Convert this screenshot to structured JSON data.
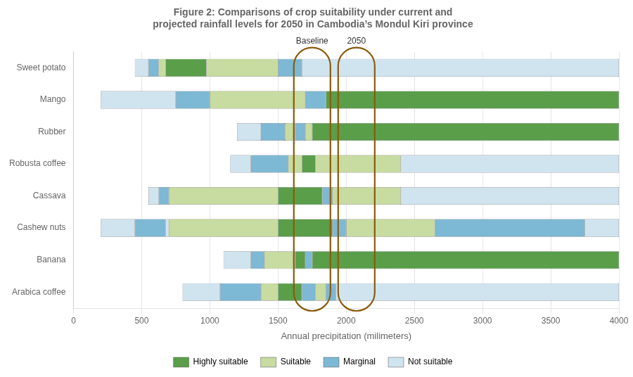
{
  "chart_data": {
    "type": "bar",
    "orientation": "horizontal",
    "title": "Figure 2: Comparisons of crop suitability under current and\nprojected rainfall levels for 2050 in Cambodia’s Mondul Kiri province",
    "xlabel": "Annual precipitation (milimeters)",
    "xlim": [
      0,
      4000
    ],
    "xticks": [
      0,
      500,
      1000,
      1500,
      2000,
      2500,
      3000,
      3500,
      4000
    ],
    "grid": "x",
    "legend": "bottom",
    "categories": [
      "Sweet potato",
      "Mango",
      "Rubber",
      "Robusta coffee",
      "Cassava",
      "Cashew nuts",
      "Banana",
      "Arabica coffee"
    ],
    "series": [
      {
        "name": "Highly suitable",
        "color": "#5a9e4a"
      },
      {
        "name": "Suitable",
        "color": "#c8dba0"
      },
      {
        "name": "Marginal",
        "color": "#7db8d4"
      },
      {
        "name": "Not suitable",
        "color": "#d0e4f0"
      }
    ],
    "segments": [
      [
        {
          "start": 450,
          "width": 100,
          "series": "Not suitable"
        },
        {
          "start": 550,
          "width": 75,
          "series": "Marginal"
        },
        {
          "start": 625,
          "width": 50,
          "series": "Suitable"
        },
        {
          "start": 675,
          "width": 300,
          "series": "Highly suitable"
        },
        {
          "start": 975,
          "width": 525,
          "series": "Suitable"
        },
        {
          "start": 1500,
          "width": 175,
          "series": "Marginal"
        },
        {
          "start": 1675,
          "width": 2325,
          "series": "Not suitable"
        }
      ],
      [
        {
          "start": 200,
          "width": 550,
          "series": "Not suitable"
        },
        {
          "start": 750,
          "width": 250,
          "series": "Marginal"
        },
        {
          "start": 1000,
          "width": 700,
          "series": "Suitable"
        },
        {
          "start": 1700,
          "width": 150,
          "series": "Marginal"
        },
        {
          "start": 1850,
          "width": 2150,
          "series": "Highly suitable"
        }
      ],
      [
        {
          "start": 1200,
          "width": 175,
          "series": "Not suitable"
        },
        {
          "start": 1375,
          "width": 175,
          "series": "Marginal"
        },
        {
          "start": 1550,
          "width": 75,
          "series": "Suitable"
        },
        {
          "start": 1625,
          "width": 75,
          "series": "Marginal"
        },
        {
          "start": 1700,
          "width": 50,
          "series": "Suitable"
        },
        {
          "start": 1750,
          "width": 2250,
          "series": "Highly suitable"
        }
      ],
      [
        {
          "start": 1150,
          "width": 150,
          "series": "Not suitable"
        },
        {
          "start": 1300,
          "width": 275,
          "series": "Marginal"
        },
        {
          "start": 1575,
          "width": 100,
          "series": "Suitable"
        },
        {
          "start": 1675,
          "width": 100,
          "series": "Highly suitable"
        },
        {
          "start": 1775,
          "width": 625,
          "series": "Suitable"
        },
        {
          "start": 2400,
          "width": 1600,
          "series": "Not suitable"
        }
      ],
      [
        {
          "start": 550,
          "width": 75,
          "series": "Not suitable"
        },
        {
          "start": 625,
          "width": 75,
          "series": "Marginal"
        },
        {
          "start": 700,
          "width": 800,
          "series": "Suitable"
        },
        {
          "start": 1500,
          "width": 325,
          "series": "Highly suitable"
        },
        {
          "start": 1825,
          "width": 75,
          "series": "Marginal"
        },
        {
          "start": 1900,
          "width": 500,
          "series": "Suitable"
        },
        {
          "start": 2400,
          "width": 1600,
          "series": "Not suitable"
        }
      ],
      [
        {
          "start": 200,
          "width": 250,
          "series": "Not suitable"
        },
        {
          "start": 450,
          "width": 225,
          "series": "Marginal"
        },
        {
          "start": 675,
          "width": 25,
          "series": "Not suitable"
        },
        {
          "start": 700,
          "width": 800,
          "series": "Suitable"
        },
        {
          "start": 1500,
          "width": 400,
          "series": "Highly suitable"
        },
        {
          "start": 1900,
          "width": 100,
          "series": "Marginal"
        },
        {
          "start": 2000,
          "width": 650,
          "series": "Suitable"
        },
        {
          "start": 2650,
          "width": 1100,
          "series": "Marginal"
        },
        {
          "start": 3750,
          "width": 250,
          "series": "Not suitable"
        }
      ],
      [
        {
          "start": 1100,
          "width": 200,
          "series": "Not suitable"
        },
        {
          "start": 1300,
          "width": 100,
          "series": "Marginal"
        },
        {
          "start": 1400,
          "width": 225,
          "series": "Suitable"
        },
        {
          "start": 1625,
          "width": 75,
          "series": "Highly suitable"
        },
        {
          "start": 1700,
          "width": 50,
          "series": "Marginal"
        },
        {
          "start": 1750,
          "width": 2250,
          "series": "Highly suitable"
        }
      ],
      [
        {
          "start": 800,
          "width": 275,
          "series": "Not suitable"
        },
        {
          "start": 1075,
          "width": 300,
          "series": "Marginal"
        },
        {
          "start": 1375,
          "width": 125,
          "series": "Suitable"
        },
        {
          "start": 1500,
          "width": 175,
          "series": "Highly suitable"
        },
        {
          "start": 1675,
          "width": 100,
          "series": "Marginal"
        },
        {
          "start": 1775,
          "width": 75,
          "series": "Suitable"
        },
        {
          "start": 1850,
          "width": 75,
          "series": "Marginal"
        },
        {
          "start": 1925,
          "width": 2075,
          "series": "Not suitable"
        }
      ]
    ],
    "annotations": [
      {
        "text": "Baseline",
        "x": 1750,
        "color": "#8B5A0A"
      },
      {
        "text": "2050",
        "x": 2075,
        "color": "#8B5A0A"
      }
    ]
  }
}
